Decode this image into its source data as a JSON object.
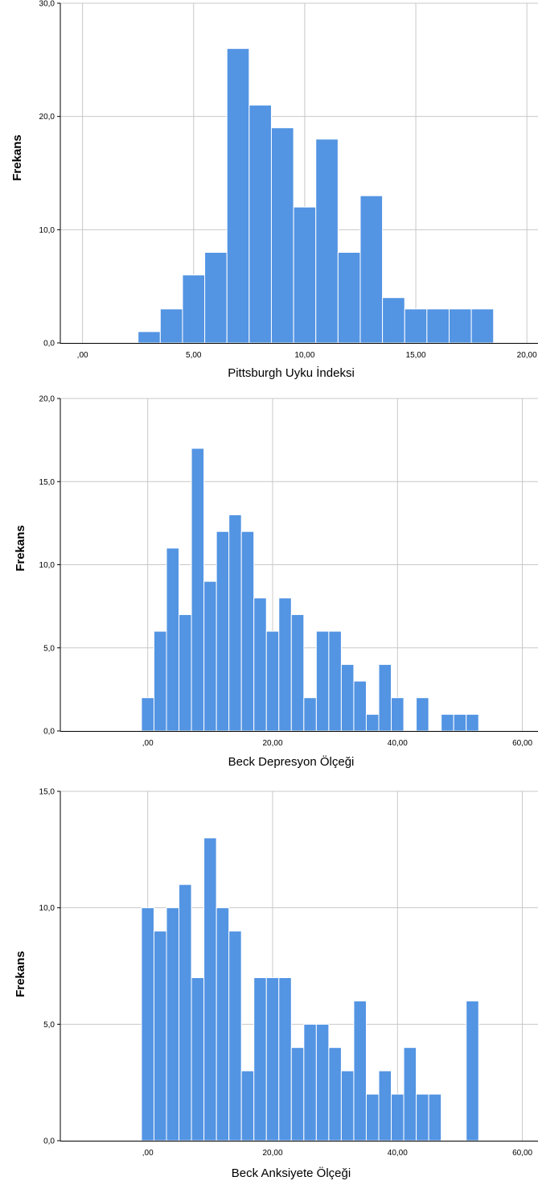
{
  "colors": {
    "bar": "#5394e3",
    "grid": "#c8c8c8",
    "axis": "#000000"
  },
  "chart_data": [
    {
      "type": "bar",
      "xlabel": "Pittsburgh Uyku İndeksi",
      "ylabel": "Frekans",
      "xlim": [
        -1,
        20.5
      ],
      "ylim": [
        0,
        30
      ],
      "grid": true,
      "x_ticks": [
        0,
        5,
        10,
        15,
        20
      ],
      "x_tick_labels": [
        ",00",
        "5,00",
        "10,00",
        "15,00",
        "20,00"
      ],
      "y_ticks": [
        0,
        10,
        20,
        30
      ],
      "y_tick_labels": [
        "0,0",
        "10,0",
        "20,0",
        "30,0"
      ],
      "bin_width": 1,
      "bins": [
        {
          "start": 2.5,
          "count": 1
        },
        {
          "start": 3.5,
          "count": 3
        },
        {
          "start": 4.5,
          "count": 6
        },
        {
          "start": 5.5,
          "count": 8
        },
        {
          "start": 6.5,
          "count": 26
        },
        {
          "start": 7.5,
          "count": 21
        },
        {
          "start": 8.5,
          "count": 19
        },
        {
          "start": 9.5,
          "count": 12
        },
        {
          "start": 10.5,
          "count": 18
        },
        {
          "start": 11.5,
          "count": 8
        },
        {
          "start": 12.5,
          "count": 13
        },
        {
          "start": 13.5,
          "count": 4
        },
        {
          "start": 14.5,
          "count": 3
        },
        {
          "start": 15.5,
          "count": 3
        },
        {
          "start": 16.5,
          "count": 3
        },
        {
          "start": 17.5,
          "count": 3
        }
      ]
    },
    {
      "type": "bar",
      "xlabel": "Beck Depresyon Ölçeği",
      "ylabel": "Frekans",
      "xlim": [
        -14,
        62.5
      ],
      "ylim": [
        0,
        20
      ],
      "grid": true,
      "x_ticks": [
        0,
        20,
        40,
        60
      ],
      "x_tick_labels": [
        ",00",
        "20,00",
        "40,00",
        "60,00"
      ],
      "y_ticks": [
        0,
        5,
        10,
        15,
        20
      ],
      "y_tick_labels": [
        "0,0",
        "5,0",
        "10,0",
        "15,0",
        "20,0"
      ],
      "bin_width": 2,
      "bins": [
        {
          "start": -1,
          "count": 2
        },
        {
          "start": 1,
          "count": 6
        },
        {
          "start": 3,
          "count": 11
        },
        {
          "start": 5,
          "count": 7
        },
        {
          "start": 7,
          "count": 17
        },
        {
          "start": 9,
          "count": 9
        },
        {
          "start": 11,
          "count": 12
        },
        {
          "start": 13,
          "count": 13
        },
        {
          "start": 15,
          "count": 12
        },
        {
          "start": 17,
          "count": 8
        },
        {
          "start": 19,
          "count": 6
        },
        {
          "start": 21,
          "count": 8
        },
        {
          "start": 23,
          "count": 7
        },
        {
          "start": 25,
          "count": 2
        },
        {
          "start": 27,
          "count": 6
        },
        {
          "start": 29,
          "count": 6
        },
        {
          "start": 31,
          "count": 4
        },
        {
          "start": 33,
          "count": 3
        },
        {
          "start": 35,
          "count": 1
        },
        {
          "start": 37,
          "count": 4
        },
        {
          "start": 39,
          "count": 2
        },
        {
          "start": 43,
          "count": 2
        },
        {
          "start": 47,
          "count": 1
        },
        {
          "start": 49,
          "count": 1
        },
        {
          "start": 51,
          "count": 1
        }
      ]
    },
    {
      "type": "bar",
      "xlabel": "Beck Anksiyete Ölçeği",
      "ylabel": "Frekans",
      "xlim": [
        -14,
        62.5
      ],
      "ylim": [
        0,
        15
      ],
      "grid": true,
      "x_ticks": [
        0,
        20,
        40,
        60
      ],
      "x_tick_labels": [
        ",00",
        "20,00",
        "40,00",
        "60,00"
      ],
      "y_ticks": [
        0,
        5,
        10,
        15
      ],
      "y_tick_labels": [
        "0,0",
        "5,0",
        "10,0",
        "15,0"
      ],
      "bin_width": 2,
      "bins": [
        {
          "start": -1,
          "count": 10
        },
        {
          "start": 1,
          "count": 9
        },
        {
          "start": 3,
          "count": 10
        },
        {
          "start": 5,
          "count": 11
        },
        {
          "start": 7,
          "count": 7
        },
        {
          "start": 9,
          "count": 13
        },
        {
          "start": 11,
          "count": 10
        },
        {
          "start": 13,
          "count": 9
        },
        {
          "start": 15,
          "count": 3
        },
        {
          "start": 17,
          "count": 7
        },
        {
          "start": 19,
          "count": 7
        },
        {
          "start": 21,
          "count": 7
        },
        {
          "start": 23,
          "count": 4
        },
        {
          "start": 25,
          "count": 5
        },
        {
          "start": 27,
          "count": 5
        },
        {
          "start": 29,
          "count": 4
        },
        {
          "start": 31,
          "count": 3
        },
        {
          "start": 33,
          "count": 6
        },
        {
          "start": 35,
          "count": 2
        },
        {
          "start": 37,
          "count": 3
        },
        {
          "start": 39,
          "count": 2
        },
        {
          "start": 41,
          "count": 4
        },
        {
          "start": 43,
          "count": 2
        },
        {
          "start": 45,
          "count": 2
        },
        {
          "start": 51,
          "count": 6
        }
      ]
    }
  ]
}
